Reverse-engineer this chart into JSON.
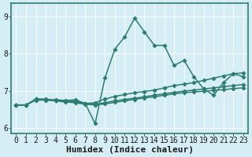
{
  "xlabel": "Humidex (Indice chaleur)",
  "background_color": "#d5eef5",
  "grid_color": "#ffffff",
  "line_color": "#2d7d6e",
  "xlim": [
    -0.5,
    23.5
  ],
  "ylim": [
    5.85,
    9.35
  ],
  "yticks": [
    6,
    7,
    8,
    9
  ],
  "xticks": [
    0,
    1,
    2,
    3,
    4,
    5,
    6,
    7,
    8,
    9,
    10,
    11,
    12,
    13,
    14,
    15,
    16,
    17,
    18,
    19,
    20,
    21,
    22,
    23
  ],
  "series": [
    [
      6.62,
      6.62,
      6.78,
      6.76,
      6.76,
      6.74,
      6.76,
      6.66,
      6.12,
      7.35,
      8.12,
      8.45,
      8.95,
      8.58,
      8.22,
      8.22,
      7.68,
      7.82,
      7.38,
      7.05,
      6.88,
      7.22,
      7.46,
      7.38
    ],
    [
      6.62,
      6.62,
      6.78,
      6.78,
      6.74,
      6.72,
      6.72,
      6.66,
      6.68,
      6.78,
      6.85,
      6.9,
      6.95,
      6.98,
      7.02,
      7.08,
      7.14,
      7.18,
      7.22,
      7.28,
      7.34,
      7.4,
      7.46,
      7.48
    ],
    [
      6.62,
      6.62,
      6.76,
      6.76,
      6.74,
      6.72,
      6.7,
      6.66,
      6.64,
      6.68,
      6.73,
      6.77,
      6.8,
      6.84,
      6.88,
      6.92,
      6.96,
      6.99,
      7.02,
      7.05,
      7.08,
      7.11,
      7.14,
      7.17
    ],
    [
      6.62,
      6.62,
      6.75,
      6.75,
      6.73,
      6.7,
      6.68,
      6.64,
      6.62,
      6.65,
      6.69,
      6.73,
      6.77,
      6.81,
      6.84,
      6.88,
      6.92,
      6.95,
      6.97,
      6.99,
      7.01,
      7.03,
      7.06,
      7.08
    ]
  ],
  "marker": "D",
  "markersize": 2.8,
  "linewidth": 1.1,
  "fontsize_ticks": 7,
  "fontsize_xlabel": 8
}
